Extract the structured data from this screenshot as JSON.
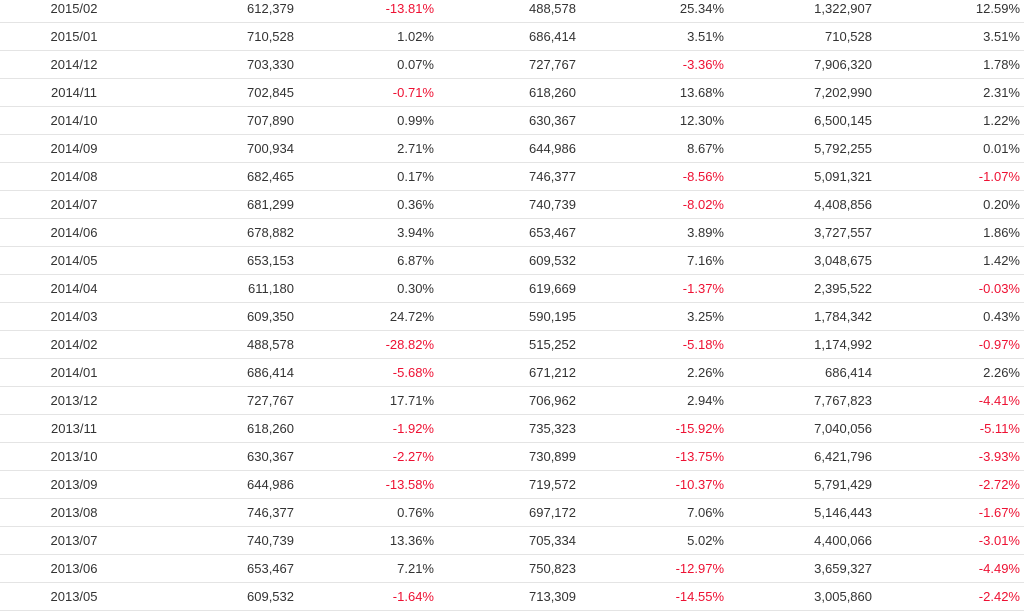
{
  "colors": {
    "text": "#333333",
    "negative": "#ee1133",
    "row_border": "#e4e4e4"
  },
  "rows": [
    [
      "2015/02",
      "612,379",
      "-13.81%",
      "488,578",
      "25.34%",
      "1,322,907",
      "12.59%"
    ],
    [
      "2015/01",
      "710,528",
      "1.02%",
      "686,414",
      "3.51%",
      "710,528",
      "3.51%"
    ],
    [
      "2014/12",
      "703,330",
      "0.07%",
      "727,767",
      "-3.36%",
      "7,906,320",
      "1.78%"
    ],
    [
      "2014/11",
      "702,845",
      "-0.71%",
      "618,260",
      "13.68%",
      "7,202,990",
      "2.31%"
    ],
    [
      "2014/10",
      "707,890",
      "0.99%",
      "630,367",
      "12.30%",
      "6,500,145",
      "1.22%"
    ],
    [
      "2014/09",
      "700,934",
      "2.71%",
      "644,986",
      "8.67%",
      "5,792,255",
      "0.01%"
    ],
    [
      "2014/08",
      "682,465",
      "0.17%",
      "746,377",
      "-8.56%",
      "5,091,321",
      "-1.07%"
    ],
    [
      "2014/07",
      "681,299",
      "0.36%",
      "740,739",
      "-8.02%",
      "4,408,856",
      "0.20%"
    ],
    [
      "2014/06",
      "678,882",
      "3.94%",
      "653,467",
      "3.89%",
      "3,727,557",
      "1.86%"
    ],
    [
      "2014/05",
      "653,153",
      "6.87%",
      "609,532",
      "7.16%",
      "3,048,675",
      "1.42%"
    ],
    [
      "2014/04",
      "611,180",
      "0.30%",
      "619,669",
      "-1.37%",
      "2,395,522",
      "-0.03%"
    ],
    [
      "2014/03",
      "609,350",
      "24.72%",
      "590,195",
      "3.25%",
      "1,784,342",
      "0.43%"
    ],
    [
      "2014/02",
      "488,578",
      "-28.82%",
      "515,252",
      "-5.18%",
      "1,174,992",
      "-0.97%"
    ],
    [
      "2014/01",
      "686,414",
      "-5.68%",
      "671,212",
      "2.26%",
      "686,414",
      "2.26%"
    ],
    [
      "2013/12",
      "727,767",
      "17.71%",
      "706,962",
      "2.94%",
      "7,767,823",
      "-4.41%"
    ],
    [
      "2013/11",
      "618,260",
      "-1.92%",
      "735,323",
      "-15.92%",
      "7,040,056",
      "-5.11%"
    ],
    [
      "2013/10",
      "630,367",
      "-2.27%",
      "730,899",
      "-13.75%",
      "6,421,796",
      "-3.93%"
    ],
    [
      "2013/09",
      "644,986",
      "-13.58%",
      "719,572",
      "-10.37%",
      "5,791,429",
      "-2.72%"
    ],
    [
      "2013/08",
      "746,377",
      "0.76%",
      "697,172",
      "7.06%",
      "5,146,443",
      "-1.67%"
    ],
    [
      "2013/07",
      "740,739",
      "13.36%",
      "705,334",
      "5.02%",
      "4,400,066",
      "-3.01%"
    ],
    [
      "2013/06",
      "653,467",
      "7.21%",
      "750,823",
      "-12.97%",
      "3,659,327",
      "-4.49%"
    ],
    [
      "2013/05",
      "609,532",
      "-1.64%",
      "713,309",
      "-14.55%",
      "3,005,860",
      "-2.42%"
    ]
  ]
}
